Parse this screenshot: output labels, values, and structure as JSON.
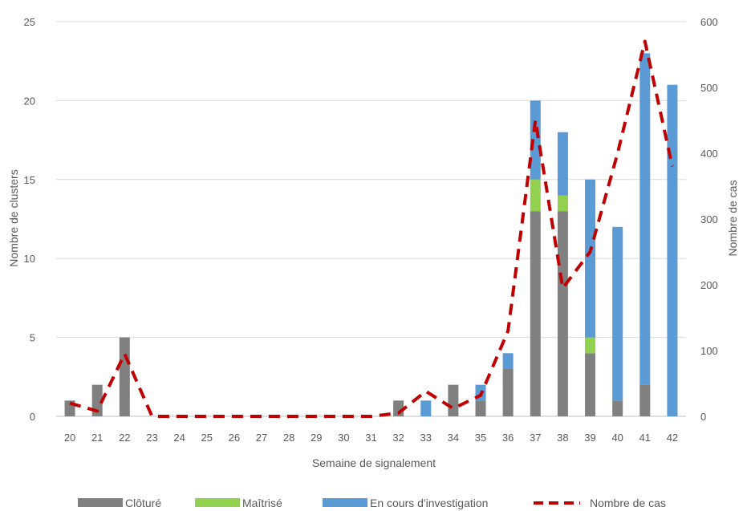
{
  "chart_data": {
    "type": "bar",
    "stacked": true,
    "xlabel": "Semaine de signalement",
    "ylabel": "Nombre de clusters",
    "y2label": "Nombre de cas",
    "ylim": [
      0,
      25
    ],
    "y2lim": [
      0,
      600
    ],
    "yticks": [
      0,
      5,
      10,
      15,
      20,
      25
    ],
    "y2ticks": [
      0,
      100,
      200,
      300,
      400,
      500,
      600
    ],
    "grid": true,
    "legend_position": "bottom",
    "categories": [
      "20",
      "21",
      "22",
      "23",
      "24",
      "25",
      "26",
      "27",
      "28",
      "29",
      "30",
      "31",
      "32",
      "33",
      "34",
      "35",
      "36",
      "37",
      "38",
      "39",
      "40",
      "41",
      "42"
    ],
    "series": [
      {
        "name": "Clôturé",
        "color": "#808080",
        "values": [
          1,
          2,
          5,
          0,
          0,
          0,
          0,
          0,
          0,
          0,
          0,
          0,
          1,
          0,
          2,
          1,
          3,
          13,
          13,
          4,
          1,
          2,
          0
        ]
      },
      {
        "name": "Maîtrisé",
        "color": "#92d050",
        "values": [
          0,
          0,
          0,
          0,
          0,
          0,
          0,
          0,
          0,
          0,
          0,
          0,
          0,
          0,
          0,
          0,
          0,
          2,
          1,
          1,
          0,
          0,
          0
        ]
      },
      {
        "name": "En cours d'investigation",
        "color": "#5b9bd5",
        "values": [
          0,
          0,
          0,
          0,
          0,
          0,
          0,
          0,
          0,
          0,
          0,
          0,
          0,
          1,
          0,
          1,
          1,
          5,
          4,
          10,
          11,
          21,
          21
        ]
      }
    ],
    "line_series": {
      "name": "Nombre de cas",
      "color": "#c00000",
      "axis": "right",
      "style": "dashed",
      "values": [
        20,
        8,
        95,
        0,
        0,
        0,
        0,
        0,
        0,
        0,
        0,
        0,
        5,
        38,
        12,
        32,
        130,
        450,
        195,
        250,
        400,
        570,
        380
      ]
    }
  }
}
